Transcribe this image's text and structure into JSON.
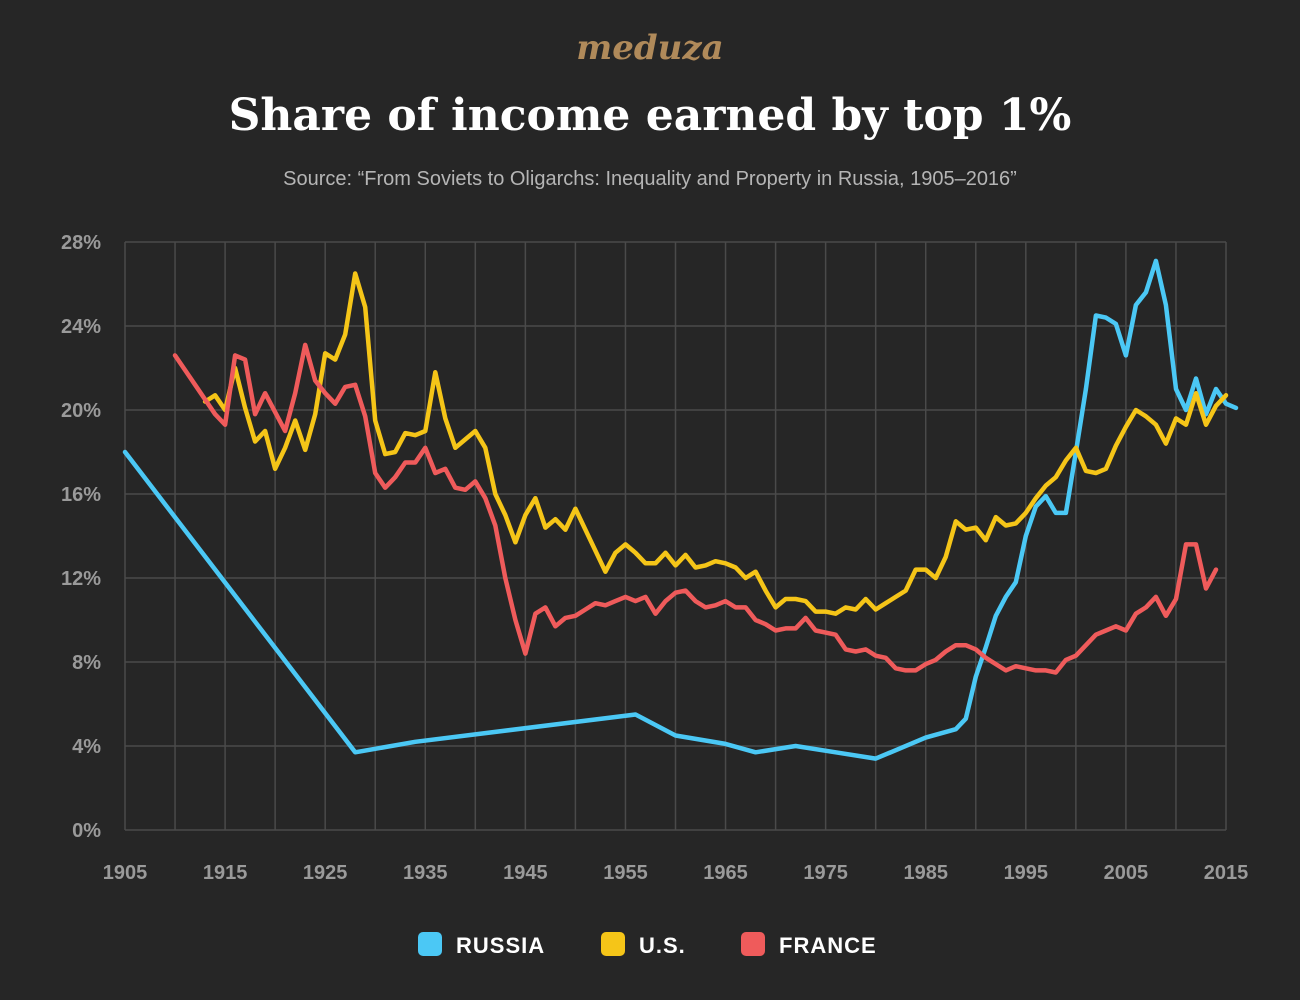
{
  "brand": "meduza",
  "colors": {
    "background": "#262626",
    "brand": "#b08a5a",
    "title": "#ffffff",
    "subtitle": "#b5b5b5",
    "grid": "#4a4a4a",
    "tick": "#9a9a9a",
    "legend": "#ffffff"
  },
  "chart_data": {
    "type": "line",
    "title": "Share of income earned by top 1%",
    "subtitle": "Source: “From Soviets to Oligarchs: Inequality and Property in Russia, 1905–2016”",
    "xlabel": "",
    "ylabel": "",
    "xlim": [
      1905,
      2015
    ],
    "ylim": [
      0,
      28
    ],
    "grid": true,
    "legend_position": "bottom",
    "x_ticks": [
      1905,
      1915,
      1925,
      1935,
      1945,
      1955,
      1965,
      1975,
      1985,
      1995,
      2005,
      2015
    ],
    "x_tick_labels": [
      "1905",
      "1915",
      "1925",
      "1935",
      "1945",
      "1955",
      "1965",
      "1975",
      "1985",
      "1995",
      "2005",
      "2015"
    ],
    "y_ticks": [
      0,
      4,
      8,
      12,
      16,
      20,
      24,
      28
    ],
    "y_tick_labels": [
      "0%",
      "4%",
      "8%",
      "12%",
      "16%",
      "20%",
      "24%",
      "28%"
    ],
    "series": [
      {
        "name": "RUSSIA",
        "color": "#4bc8f5",
        "points": [
          [
            1905,
            18.0
          ],
          [
            1928,
            3.7
          ],
          [
            1934,
            4.2
          ],
          [
            1956,
            5.5
          ],
          [
            1960,
            4.5
          ],
          [
            1965,
            4.1
          ],
          [
            1968,
            3.7
          ],
          [
            1972,
            4.0
          ],
          [
            1976,
            3.7
          ],
          [
            1980,
            3.4
          ],
          [
            1985,
            4.4
          ],
          [
            1988,
            4.8
          ],
          [
            1989,
            5.3
          ],
          [
            1990,
            7.3
          ],
          [
            1991,
            8.7
          ],
          [
            1992,
            10.2
          ],
          [
            1993,
            11.1
          ],
          [
            1994,
            11.8
          ],
          [
            1995,
            14.0
          ],
          [
            1996,
            15.4
          ],
          [
            1997,
            15.9
          ],
          [
            1998,
            15.1
          ],
          [
            1999,
            15.1
          ],
          [
            2000,
            18.0
          ],
          [
            2001,
            21.0
          ],
          [
            2002,
            24.5
          ],
          [
            2003,
            24.4
          ],
          [
            2004,
            24.1
          ],
          [
            2005,
            22.6
          ],
          [
            2006,
            25.0
          ],
          [
            2007,
            25.6
          ],
          [
            2008,
            27.1
          ],
          [
            2009,
            25.0
          ],
          [
            2010,
            21.0
          ],
          [
            2011,
            20.0
          ],
          [
            2012,
            21.5
          ],
          [
            2013,
            19.8
          ],
          [
            2014,
            21.0
          ],
          [
            2015,
            20.3
          ],
          [
            2016,
            20.1
          ]
        ]
      },
      {
        "name": "U.S.",
        "color": "#f5c518",
        "points": [
          [
            1913,
            20.4
          ],
          [
            1914,
            20.7
          ],
          [
            1915,
            20.0
          ],
          [
            1916,
            22.0
          ],
          [
            1917,
            20.1
          ],
          [
            1918,
            18.5
          ],
          [
            1919,
            19.0
          ],
          [
            1920,
            17.2
          ],
          [
            1921,
            18.2
          ],
          [
            1922,
            19.5
          ],
          [
            1923,
            18.1
          ],
          [
            1924,
            19.8
          ],
          [
            1925,
            22.7
          ],
          [
            1926,
            22.4
          ],
          [
            1927,
            23.6
          ],
          [
            1928,
            26.5
          ],
          [
            1929,
            24.9
          ],
          [
            1930,
            19.5
          ],
          [
            1931,
            17.9
          ],
          [
            1932,
            18.0
          ],
          [
            1933,
            18.9
          ],
          [
            1934,
            18.8
          ],
          [
            1935,
            19.0
          ],
          [
            1936,
            21.8
          ],
          [
            1937,
            19.6
          ],
          [
            1938,
            18.2
          ],
          [
            1939,
            18.6
          ],
          [
            1940,
            19.0
          ],
          [
            1941,
            18.2
          ],
          [
            1942,
            16.0
          ],
          [
            1943,
            15.0
          ],
          [
            1944,
            13.7
          ],
          [
            1945,
            15.0
          ],
          [
            1946,
            15.8
          ],
          [
            1947,
            14.4
          ],
          [
            1948,
            14.8
          ],
          [
            1949,
            14.3
          ],
          [
            1950,
            15.3
          ],
          [
            1951,
            14.3
          ],
          [
            1952,
            13.3
          ],
          [
            1953,
            12.3
          ],
          [
            1954,
            13.2
          ],
          [
            1955,
            13.6
          ],
          [
            1956,
            13.2
          ],
          [
            1957,
            12.7
          ],
          [
            1958,
            12.7
          ],
          [
            1959,
            13.2
          ],
          [
            1960,
            12.6
          ],
          [
            1961,
            13.1
          ],
          [
            1962,
            12.5
          ],
          [
            1963,
            12.6
          ],
          [
            1964,
            12.8
          ],
          [
            1965,
            12.7
          ],
          [
            1966,
            12.5
          ],
          [
            1967,
            12.0
          ],
          [
            1968,
            12.3
          ],
          [
            1969,
            11.4
          ],
          [
            1970,
            10.6
          ],
          [
            1971,
            11.0
          ],
          [
            1972,
            11.0
          ],
          [
            1973,
            10.9
          ],
          [
            1974,
            10.4
          ],
          [
            1975,
            10.4
          ],
          [
            1976,
            10.3
          ],
          [
            1977,
            10.6
          ],
          [
            1978,
            10.5
          ],
          [
            1979,
            11.0
          ],
          [
            1980,
            10.5
          ],
          [
            1981,
            10.8
          ],
          [
            1982,
            11.1
          ],
          [
            1983,
            11.4
          ],
          [
            1984,
            12.4
          ],
          [
            1985,
            12.4
          ],
          [
            1986,
            12.0
          ],
          [
            1987,
            13.0
          ],
          [
            1988,
            14.7
          ],
          [
            1989,
            14.3
          ],
          [
            1990,
            14.4
          ],
          [
            1991,
            13.8
          ],
          [
            1992,
            14.9
          ],
          [
            1993,
            14.5
          ],
          [
            1994,
            14.6
          ],
          [
            1995,
            15.1
          ],
          [
            1996,
            15.8
          ],
          [
            1997,
            16.4
          ],
          [
            1998,
            16.8
          ],
          [
            1999,
            17.6
          ],
          [
            2000,
            18.2
          ],
          [
            2001,
            17.1
          ],
          [
            2002,
            17.0
          ],
          [
            2003,
            17.2
          ],
          [
            2004,
            18.3
          ],
          [
            2005,
            19.2
          ],
          [
            2006,
            20.0
          ],
          [
            2007,
            19.7
          ],
          [
            2008,
            19.3
          ],
          [
            2009,
            18.4
          ],
          [
            2010,
            19.6
          ],
          [
            2011,
            19.3
          ],
          [
            2012,
            20.8
          ],
          [
            2013,
            19.3
          ],
          [
            2014,
            20.2
          ],
          [
            2015,
            20.7
          ]
        ]
      },
      {
        "name": "FRANCE",
        "color": "#ef5b5b",
        "points": [
          [
            1910,
            22.6
          ],
          [
            1911,
            21.9
          ],
          [
            1912,
            21.2
          ],
          [
            1913,
            20.5
          ],
          [
            1914,
            19.8
          ],
          [
            1915,
            19.3
          ],
          [
            1916,
            22.6
          ],
          [
            1917,
            22.4
          ],
          [
            1918,
            19.8
          ],
          [
            1919,
            20.8
          ],
          [
            1920,
            19.9
          ],
          [
            1921,
            19.0
          ],
          [
            1922,
            20.8
          ],
          [
            1923,
            23.1
          ],
          [
            1924,
            21.4
          ],
          [
            1925,
            20.8
          ],
          [
            1926,
            20.3
          ],
          [
            1927,
            21.1
          ],
          [
            1928,
            21.2
          ],
          [
            1929,
            19.7
          ],
          [
            1930,
            17.0
          ],
          [
            1931,
            16.3
          ],
          [
            1932,
            16.8
          ],
          [
            1933,
            17.5
          ],
          [
            1934,
            17.5
          ],
          [
            1935,
            18.2
          ],
          [
            1936,
            17.0
          ],
          [
            1937,
            17.2
          ],
          [
            1938,
            16.3
          ],
          [
            1939,
            16.2
          ],
          [
            1940,
            16.6
          ],
          [
            1941,
            15.8
          ],
          [
            1942,
            14.5
          ],
          [
            1943,
            12.0
          ],
          [
            1944,
            10.0
          ],
          [
            1945,
            8.4
          ],
          [
            1946,
            10.3
          ],
          [
            1947,
            10.6
          ],
          [
            1948,
            9.7
          ],
          [
            1949,
            10.1
          ],
          [
            1950,
            10.2
          ],
          [
            1951,
            10.5
          ],
          [
            1952,
            10.8
          ],
          [
            1953,
            10.7
          ],
          [
            1954,
            10.9
          ],
          [
            1955,
            11.1
          ],
          [
            1956,
            10.9
          ],
          [
            1957,
            11.1
          ],
          [
            1958,
            10.3
          ],
          [
            1959,
            10.9
          ],
          [
            1960,
            11.3
          ],
          [
            1961,
            11.4
          ],
          [
            1962,
            10.9
          ],
          [
            1963,
            10.6
          ],
          [
            1964,
            10.7
          ],
          [
            1965,
            10.9
          ],
          [
            1966,
            10.6
          ],
          [
            1967,
            10.6
          ],
          [
            1968,
            10.0
          ],
          [
            1969,
            9.8
          ],
          [
            1970,
            9.5
          ],
          [
            1971,
            9.6
          ],
          [
            1972,
            9.6
          ],
          [
            1973,
            10.1
          ],
          [
            1974,
            9.5
          ],
          [
            1975,
            9.4
          ],
          [
            1976,
            9.3
          ],
          [
            1977,
            8.6
          ],
          [
            1978,
            8.5
          ],
          [
            1979,
            8.6
          ],
          [
            1980,
            8.3
          ],
          [
            1981,
            8.2
          ],
          [
            1982,
            7.7
          ],
          [
            1983,
            7.6
          ],
          [
            1984,
            7.6
          ],
          [
            1985,
            7.9
          ],
          [
            1986,
            8.1
          ],
          [
            1987,
            8.5
          ],
          [
            1988,
            8.8
          ],
          [
            1989,
            8.8
          ],
          [
            1990,
            8.6
          ],
          [
            1991,
            8.2
          ],
          [
            1992,
            7.9
          ],
          [
            1993,
            7.6
          ],
          [
            1994,
            7.8
          ],
          [
            1995,
            7.7
          ],
          [
            1996,
            7.6
          ],
          [
            1997,
            7.6
          ],
          [
            1998,
            7.5
          ],
          [
            1999,
            8.1
          ],
          [
            2000,
            8.3
          ],
          [
            2001,
            8.8
          ],
          [
            2002,
            9.3
          ],
          [
            2003,
            9.5
          ],
          [
            2004,
            9.7
          ],
          [
            2005,
            9.5
          ],
          [
            2006,
            10.3
          ],
          [
            2007,
            10.6
          ],
          [
            2008,
            11.1
          ],
          [
            2009,
            10.2
          ],
          [
            2010,
            11.0
          ],
          [
            2011,
            13.6
          ],
          [
            2012,
            13.6
          ],
          [
            2013,
            11.5
          ],
          [
            2014,
            12.4
          ]
        ]
      }
    ]
  }
}
